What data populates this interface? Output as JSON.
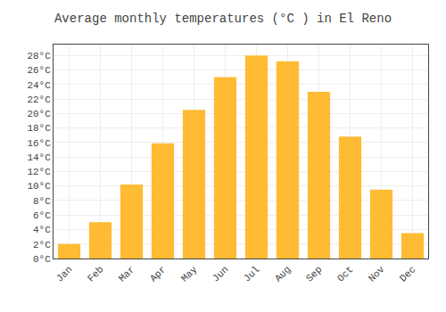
{
  "chart_data": {
    "type": "bar",
    "title": "Average monthly temperatures (°C ) in El Reno",
    "categories": [
      "Jan",
      "Feb",
      "Mar",
      "Apr",
      "May",
      "Jun",
      "Jul",
      "Aug",
      "Sep",
      "Oct",
      "Nov",
      "Dec"
    ],
    "values": [
      2.0,
      5.0,
      10.2,
      15.9,
      20.5,
      25.0,
      28.0,
      27.2,
      23.0,
      16.8,
      9.5,
      3.5
    ],
    "color": "#FFBB33",
    "ylim": [
      0,
      29.5
    ],
    "yticks": [
      {
        "value": 0,
        "label": "0°C"
      },
      {
        "value": 2,
        "label": "2°C"
      },
      {
        "value": 4,
        "label": "4°C"
      },
      {
        "value": 6,
        "label": "6°C"
      },
      {
        "value": 8,
        "label": "8°C"
      },
      {
        "value": 10,
        "label": "10°C"
      },
      {
        "value": 12,
        "label": "12°C"
      },
      {
        "value": 14,
        "label": "14°C"
      },
      {
        "value": 16,
        "label": "16°C"
      },
      {
        "value": 18,
        "label": "18°C"
      },
      {
        "value": 20,
        "label": "20°C"
      },
      {
        "value": 22,
        "label": "22°C"
      },
      {
        "value": 24,
        "label": "24°C"
      },
      {
        "value": 26,
        "label": "26°C"
      },
      {
        "value": 28,
        "label": "28°C"
      }
    ],
    "grid": true
  }
}
